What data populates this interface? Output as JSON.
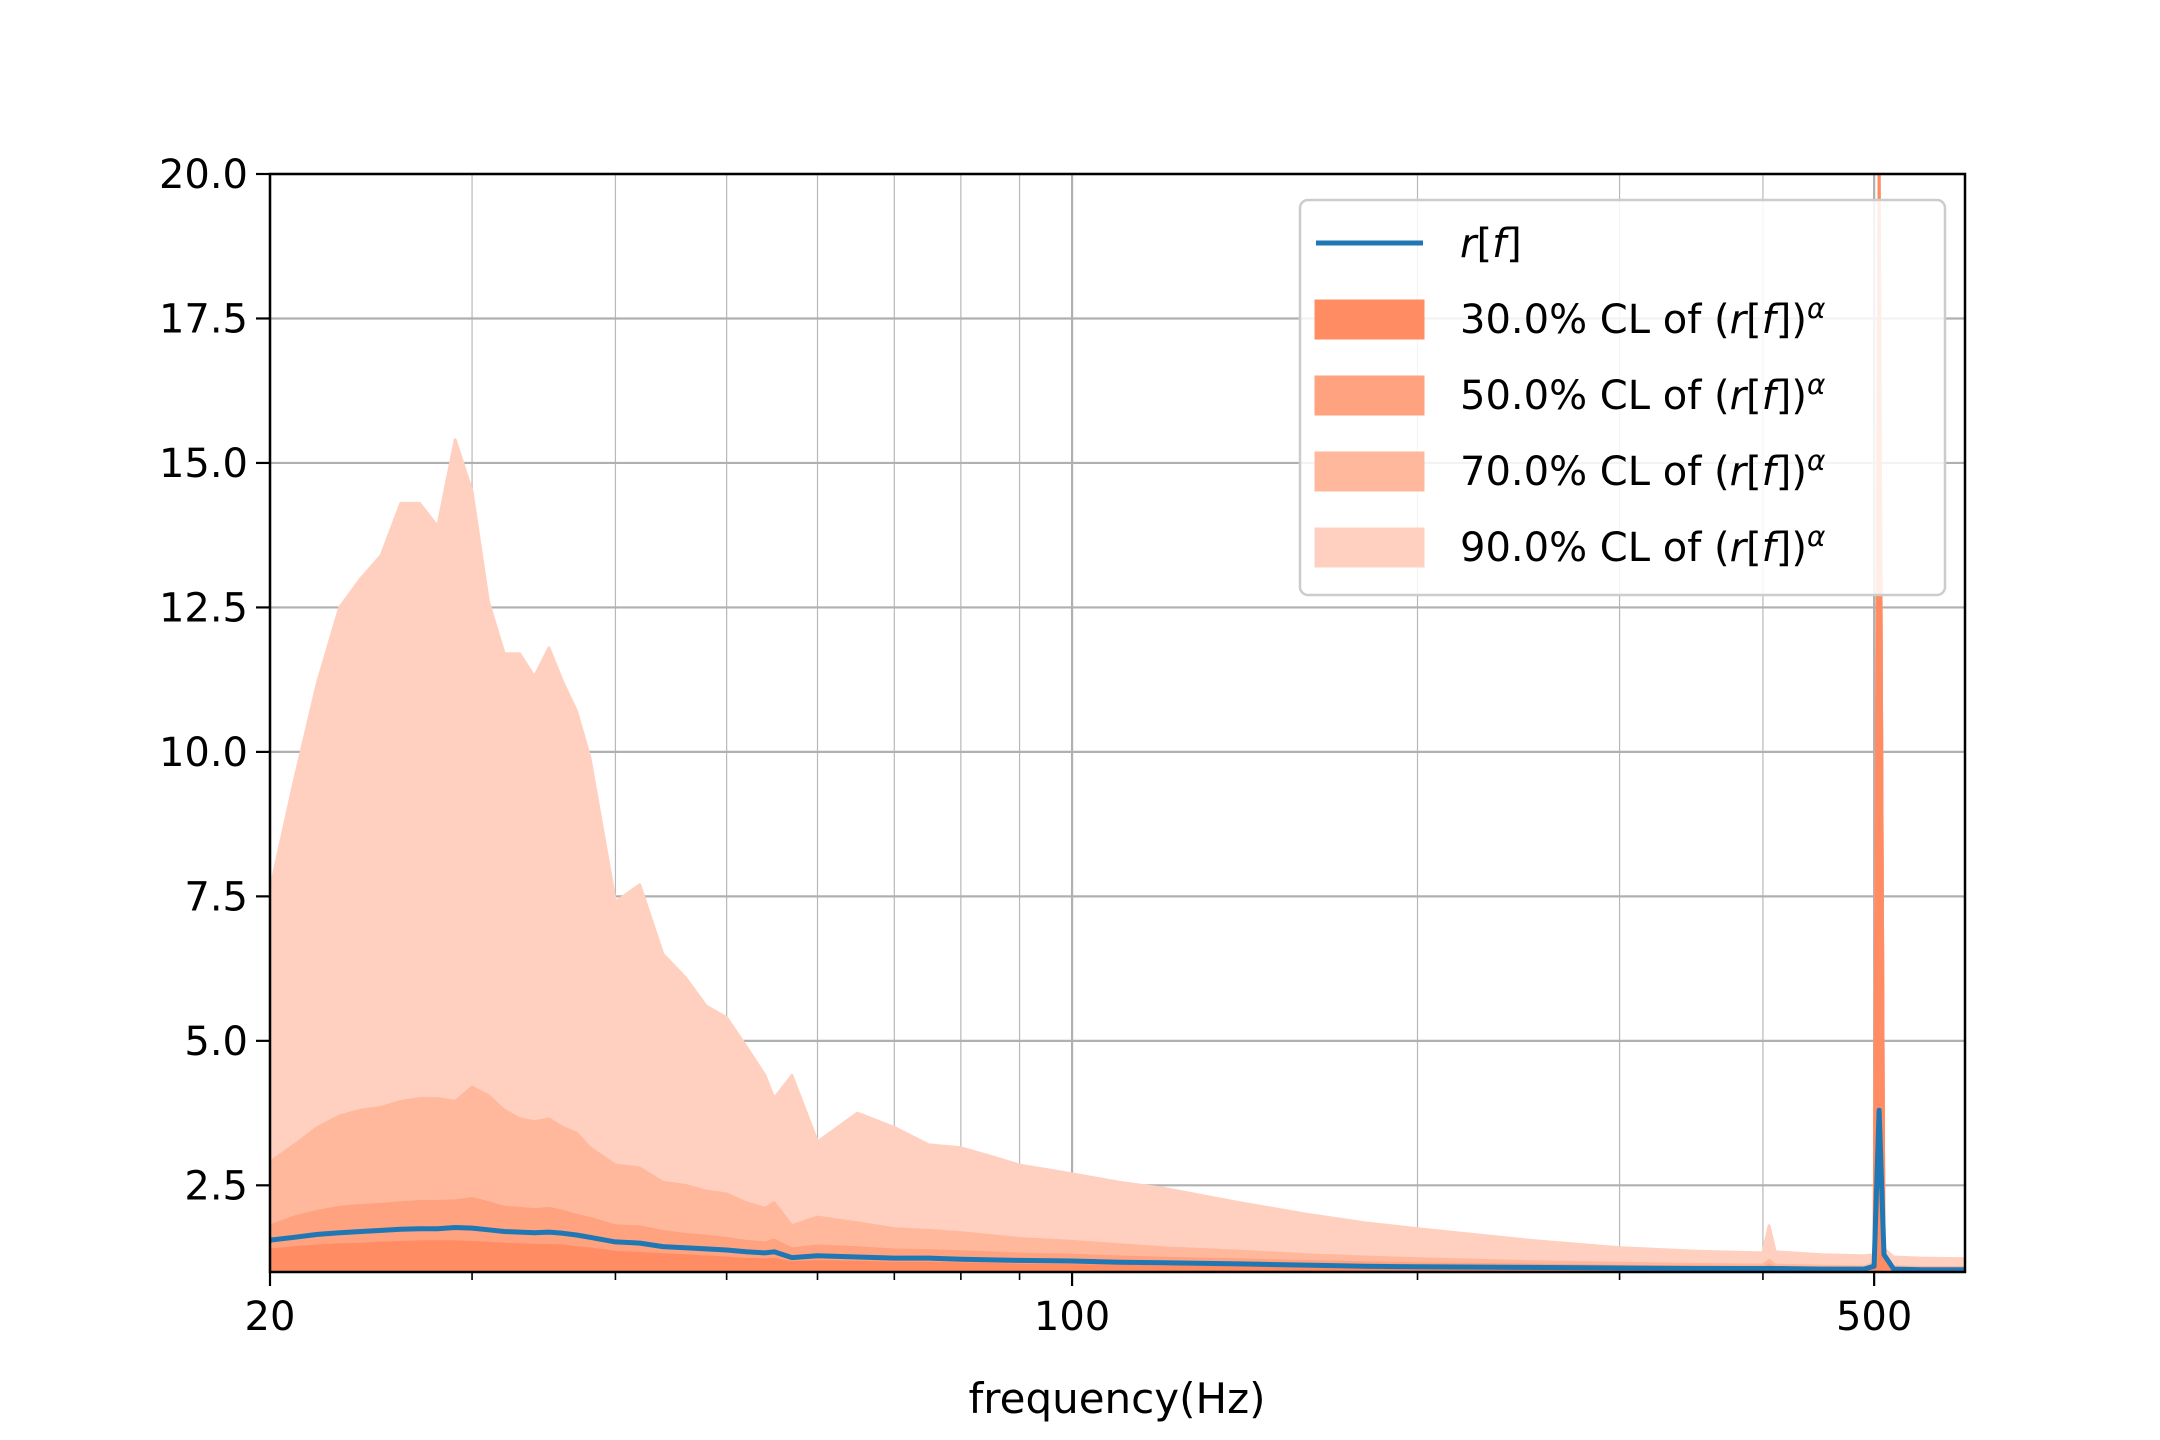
{
  "chart_data": {
    "type": "area",
    "xlabel": "frequency(Hz)",
    "ylabel": "",
    "xscale": "log",
    "xlim": [
      20,
      600
    ],
    "ylim": [
      1,
      20
    ],
    "x_ticks": [
      20,
      100,
      500
    ],
    "x_tick_labels": [
      "20",
      "100",
      "500"
    ],
    "y_ticks": [
      2.5,
      5.0,
      7.5,
      10.0,
      12.5,
      15.0,
      17.5,
      20.0
    ],
    "y_tick_labels": [
      "2.5",
      "5.0",
      "7.5",
      "10.0",
      "12.5",
      "15.0",
      "17.5",
      "20.0"
    ],
    "grid": true,
    "legend_position": "top-right",
    "colors": {
      "line": "#1f77b4",
      "cl30": "#ff8c62",
      "cl50": "#ffa27f",
      "cl70": "#ffb89c",
      "cl90": "#ffd0bf"
    },
    "legend": [
      {
        "key": "line",
        "kind": "line",
        "label": "r[f]"
      },
      {
        "key": "cl30",
        "kind": "area",
        "label": "30.0% CL of (r[f])^α"
      },
      {
        "key": "cl50",
        "kind": "area",
        "label": "50.0% CL of (r[f])^α"
      },
      {
        "key": "cl70",
        "kind": "area",
        "label": "70.0% CL of (r[f])^α"
      },
      {
        "key": "cl90",
        "kind": "area",
        "label": "90.0% CL of (r[f])^α"
      }
    ],
    "x": [
      20,
      21,
      22,
      23,
      24,
      25,
      26,
      27,
      28,
      29,
      30,
      31,
      32,
      33,
      34,
      35,
      36,
      37,
      38,
      40,
      42,
      44,
      46,
      48,
      50,
      52,
      54,
      55,
      57,
      60,
      65,
      70,
      75,
      80,
      85,
      90,
      100,
      110,
      120,
      140,
      160,
      180,
      200,
      250,
      300,
      350,
      400,
      405,
      410,
      450,
      490,
      500,
      505,
      510,
      520,
      550,
      600
    ],
    "series": [
      {
        "key": "line",
        "values": [
          1.55,
          1.6,
          1.65,
          1.68,
          1.7,
          1.72,
          1.74,
          1.75,
          1.75,
          1.77,
          1.76,
          1.73,
          1.7,
          1.69,
          1.68,
          1.69,
          1.67,
          1.64,
          1.6,
          1.52,
          1.5,
          1.44,
          1.42,
          1.4,
          1.38,
          1.35,
          1.33,
          1.35,
          1.25,
          1.28,
          1.26,
          1.24,
          1.24,
          1.22,
          1.21,
          1.2,
          1.19,
          1.17,
          1.16,
          1.14,
          1.12,
          1.1,
          1.09,
          1.08,
          1.07,
          1.06,
          1.06,
          1.06,
          1.06,
          1.05,
          1.05,
          1.1,
          3.8,
          1.3,
          1.05,
          1.04,
          1.04
        ]
      },
      {
        "key": "cl30_upper",
        "values": [
          1.38,
          1.42,
          1.45,
          1.47,
          1.48,
          1.5,
          1.51,
          1.52,
          1.52,
          1.52,
          1.51,
          1.5,
          1.48,
          1.47,
          1.46,
          1.46,
          1.45,
          1.42,
          1.4,
          1.34,
          1.32,
          1.3,
          1.28,
          1.26,
          1.24,
          1.22,
          1.21,
          1.22,
          1.16,
          1.18,
          1.17,
          1.15,
          1.15,
          1.14,
          1.13,
          1.12,
          1.11,
          1.1,
          1.09,
          1.08,
          1.07,
          1.06,
          1.05,
          1.05,
          1.04,
          1.04,
          1.04,
          1.04,
          1.04,
          1.03,
          1.03,
          1.08,
          20,
          1.15,
          1.03,
          1.03,
          1.03
        ]
      },
      {
        "key": "cl50_upper",
        "values": [
          1.8,
          1.95,
          2.05,
          2.12,
          2.15,
          2.17,
          2.2,
          2.22,
          2.22,
          2.23,
          2.27,
          2.2,
          2.12,
          2.1,
          2.08,
          2.1,
          2.05,
          1.98,
          1.93,
          1.8,
          1.78,
          1.7,
          1.65,
          1.62,
          1.58,
          1.53,
          1.5,
          1.55,
          1.4,
          1.45,
          1.42,
          1.38,
          1.37,
          1.35,
          1.33,
          1.31,
          1.29,
          1.26,
          1.24,
          1.21,
          1.18,
          1.16,
          1.14,
          1.12,
          1.1,
          1.09,
          1.08,
          1.12,
          1.08,
          1.07,
          1.06,
          1.12,
          20,
          1.25,
          1.06,
          1.05,
          1.05
        ]
      },
      {
        "key": "cl70_upper",
        "values": [
          2.9,
          3.2,
          3.5,
          3.7,
          3.8,
          3.85,
          3.95,
          4.0,
          4.0,
          3.95,
          4.2,
          4.05,
          3.8,
          3.65,
          3.6,
          3.65,
          3.5,
          3.4,
          3.15,
          2.85,
          2.8,
          2.55,
          2.5,
          2.4,
          2.35,
          2.2,
          2.1,
          2.2,
          1.8,
          1.95,
          1.85,
          1.75,
          1.72,
          1.68,
          1.63,
          1.58,
          1.53,
          1.47,
          1.42,
          1.36,
          1.3,
          1.26,
          1.23,
          1.18,
          1.15,
          1.13,
          1.12,
          1.2,
          1.12,
          1.1,
          1.09,
          1.15,
          20,
          1.3,
          1.09,
          1.08,
          1.08
        ]
      },
      {
        "key": "cl90_upper",
        "values": [
          7.6,
          9.5,
          11.2,
          12.5,
          13.0,
          13.4,
          14.3,
          14.3,
          13.9,
          15.4,
          14.5,
          12.6,
          11.7,
          11.7,
          11.3,
          11.8,
          11.2,
          10.7,
          9.9,
          7.4,
          7.7,
          6.5,
          6.1,
          5.6,
          5.4,
          4.9,
          4.4,
          4.0,
          4.4,
          3.25,
          3.75,
          3.5,
          3.2,
          3.15,
          3.0,
          2.85,
          2.7,
          2.55,
          2.45,
          2.2,
          2.0,
          1.85,
          1.75,
          1.55,
          1.42,
          1.36,
          1.33,
          1.8,
          1.35,
          1.3,
          1.28,
          1.3,
          20,
          1.4,
          1.26,
          1.24,
          1.23
        ]
      }
    ]
  }
}
